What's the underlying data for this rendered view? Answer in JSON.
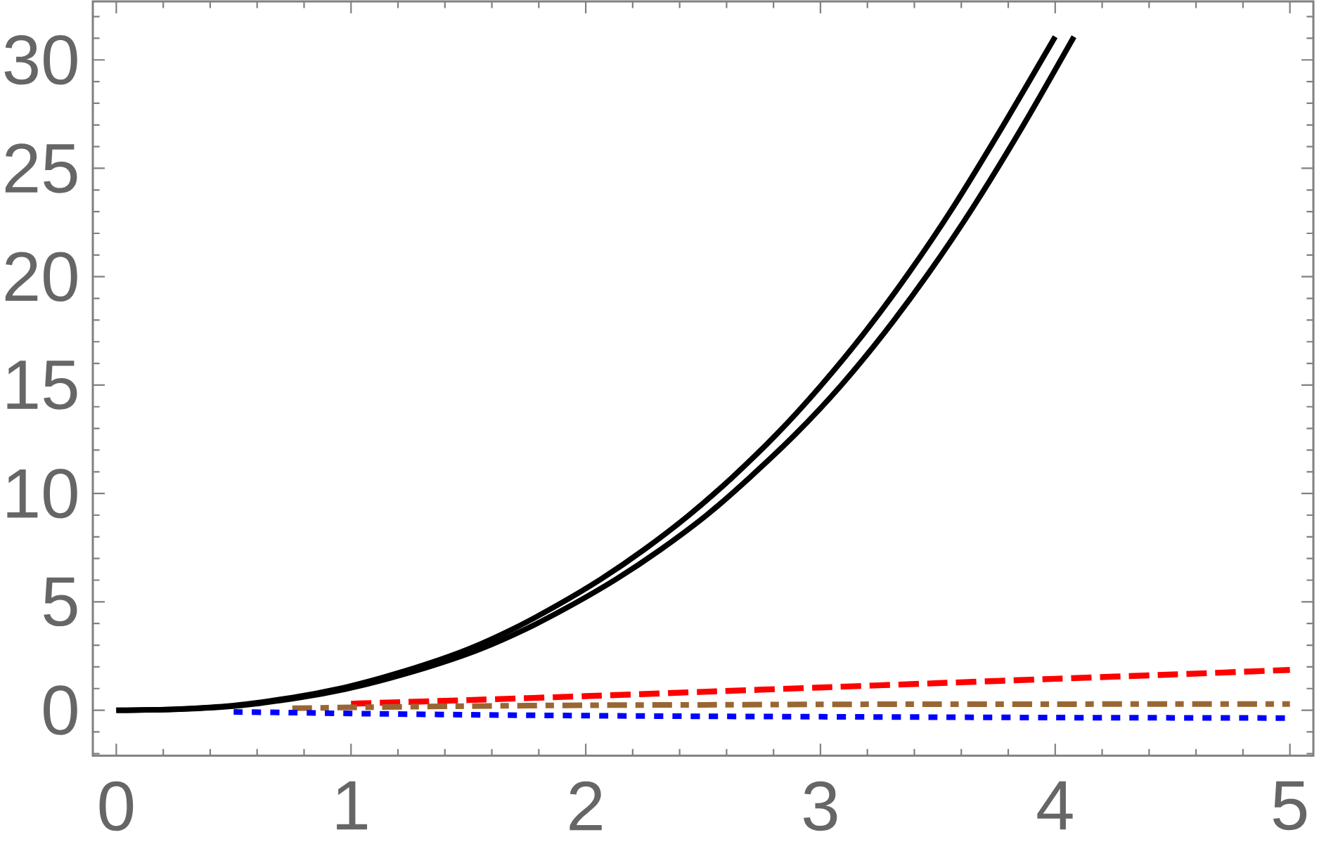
{
  "chart_data": {
    "type": "line",
    "xlim": [
      -0.1,
      5.1
    ],
    "ylim": [
      -2.1,
      32.7
    ],
    "xticks": [
      0,
      {
        "value": 0.2,
        "label": null
      },
      {
        "value": 0.4,
        "label": null
      },
      {
        "value": 0.6,
        "label": null
      },
      {
        "value": 0.8,
        "label": null
      },
      1,
      {
        "value": 1.2,
        "label": null
      },
      {
        "value": 1.4,
        "label": null
      },
      {
        "value": 1.6,
        "label": null
      },
      {
        "value": 1.8,
        "label": null
      },
      2,
      {
        "value": 2.2,
        "label": null
      },
      {
        "value": 2.4,
        "label": null
      },
      {
        "value": 2.6,
        "label": null
      },
      {
        "value": 2.8,
        "label": null
      },
      3,
      {
        "value": 3.2,
        "label": null
      },
      {
        "value": 3.4,
        "label": null
      },
      {
        "value": 3.6,
        "label": null
      },
      {
        "value": 3.8,
        "label": null
      },
      4,
      {
        "value": 4.2,
        "label": null
      },
      {
        "value": 4.4,
        "label": null
      },
      {
        "value": 4.6,
        "label": null
      },
      {
        "value": 4.8,
        "label": null
      },
      5
    ],
    "yticks": [
      {
        "value": -2,
        "label": null
      },
      {
        "value": -1,
        "label": null
      },
      0,
      {
        "value": 1,
        "label": null
      },
      {
        "value": 2,
        "label": null
      },
      {
        "value": 3,
        "label": null
      },
      {
        "value": 4,
        "label": null
      },
      5,
      {
        "value": 6,
        "label": null
      },
      {
        "value": 7,
        "label": null
      },
      {
        "value": 8,
        "label": null
      },
      {
        "value": 9,
        "label": null
      },
      10,
      {
        "value": 11,
        "label": null
      },
      {
        "value": 12,
        "label": null
      },
      {
        "value": 13,
        "label": null
      },
      {
        "value": 14,
        "label": null
      },
      15,
      {
        "value": 16,
        "label": null
      },
      {
        "value": 17,
        "label": null
      },
      {
        "value": 18,
        "label": null
      },
      {
        "value": 19,
        "label": null
      },
      20,
      {
        "value": 21,
        "label": null
      },
      {
        "value": 22,
        "label": null
      },
      {
        "value": 23,
        "label": null
      },
      {
        "value": 24,
        "label": null
      },
      25,
      {
        "value": 26,
        "label": null
      },
      {
        "value": 27,
        "label": null
      },
      {
        "value": 28,
        "label": null
      },
      {
        "value": 29,
        "label": null
      },
      30,
      {
        "value": 31,
        "label": null
      },
      {
        "value": 32,
        "label": null
      }
    ],
    "series": [
      {
        "color": "#ff0000",
        "line_style": "dashed",
        "x": [
          1,
          1.5,
          2,
          2.5,
          3,
          3.5,
          4,
          4.5,
          5
        ],
        "values": [
          0.3,
          0.47,
          0.65,
          0.85,
          1.05,
          1.25,
          1.45,
          1.65,
          1.86
        ]
      },
      {
        "color": "#996633",
        "line_style": "dashdot",
        "x": [
          0.75,
          1,
          1.5,
          2,
          2.5,
          3,
          3.5,
          4,
          4.5,
          5
        ],
        "values": [
          0.09,
          0.13,
          0.19,
          0.23,
          0.25,
          0.27,
          0.28,
          0.28,
          0.29,
          0.29
        ]
      },
      {
        "color": "#0000ff",
        "line_style": "dotted",
        "x": [
          0.5,
          0.75,
          1,
          1.5,
          2,
          2.5,
          3,
          3.5,
          4,
          4.5,
          5
        ],
        "values": [
          -0.08,
          -0.11,
          -0.15,
          -0.21,
          -0.25,
          -0.28,
          -0.3,
          -0.32,
          -0.34,
          -0.35,
          -0.36
        ]
      },
      {
        "color": "#000000",
        "line_style": "solid",
        "x": [
          0,
          0.25,
          0.5,
          0.75,
          0.94,
          1.125,
          1.315,
          1.5,
          1.69,
          1.875,
          2.065,
          2.25,
          2.44,
          2.625,
          2.815,
          3,
          3.19,
          3.375,
          3.565,
          3.78,
          4
        ],
        "values": [
          0,
          0.05,
          0.22,
          0.58,
          0.97,
          1.48,
          2.1,
          2.82,
          3.75,
          4.82,
          6.05,
          7.42,
          9,
          10.75,
          12.75,
          14.95,
          17.45,
          20.15,
          23.2,
          27,
          31.07
        ]
      },
      {
        "color": "#000000",
        "line_style": "solid",
        "x": [
          0,
          0.27,
          0.53,
          0.78,
          0.975,
          1.165,
          1.36,
          1.55,
          1.745,
          1.935,
          2.13,
          2.32,
          2.515,
          2.7,
          2.895,
          3.085,
          3.275,
          3.46,
          3.65,
          3.865,
          4.08
        ],
        "values": [
          0,
          0.05,
          0.22,
          0.58,
          0.97,
          1.48,
          2.1,
          2.82,
          3.75,
          4.82,
          6.05,
          7.42,
          9,
          10.75,
          12.75,
          14.95,
          17.45,
          20.15,
          23.2,
          27,
          31.07
        ]
      }
    ]
  }
}
